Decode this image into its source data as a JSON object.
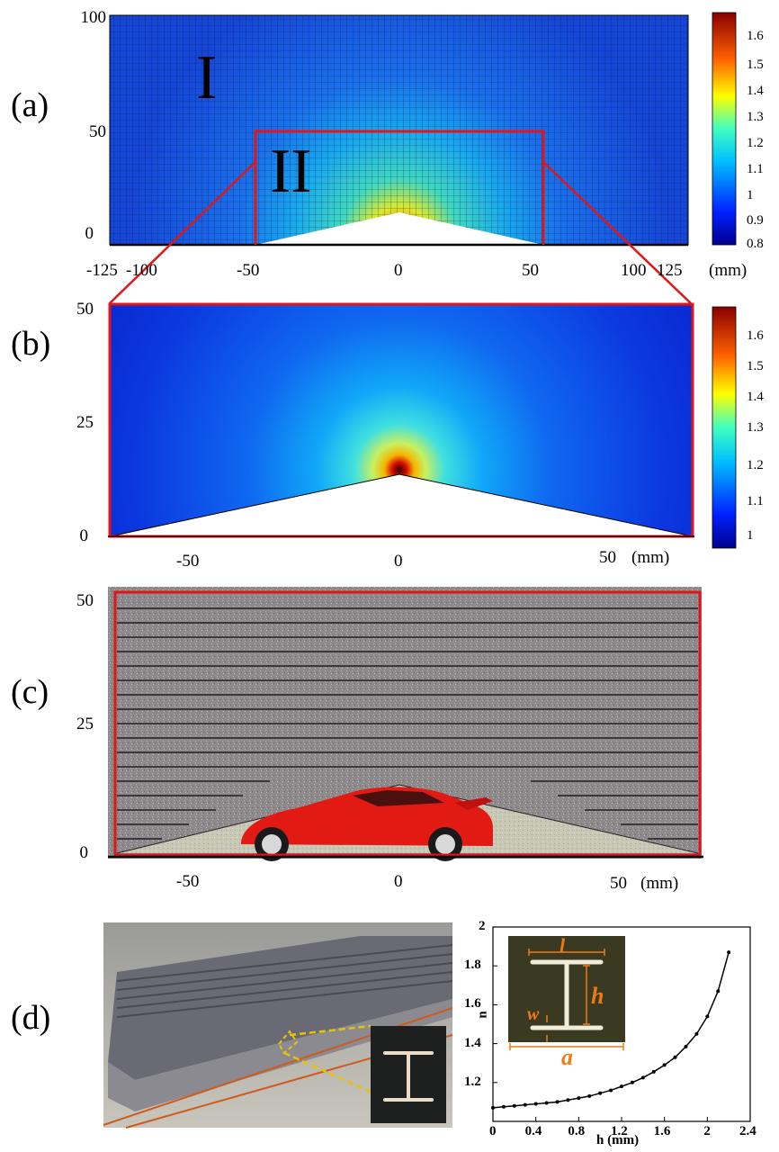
{
  "panels": {
    "a": {
      "label": "(a)",
      "region_labels": [
        "I",
        "II"
      ],
      "y_ticks": [
        "100",
        "50",
        "0"
      ],
      "x_ticks": [
        "-125",
        "-100",
        "-50",
        "0",
        "50",
        "100",
        "125"
      ],
      "x_unit": "(mm)",
      "colorbar_ticks": [
        "1.6",
        "1.5",
        "1.4",
        "1.3",
        "1.2",
        "1.1",
        "1",
        "0.9",
        "0.8"
      ]
    },
    "b": {
      "label": "(b)",
      "y_ticks": [
        "50",
        "25",
        "0"
      ],
      "x_ticks": [
        "-50",
        "0",
        "50"
      ],
      "x_unit": "(mm)",
      "colorbar_ticks": [
        "1.6",
        "1.5",
        "1.4",
        "1.3",
        "1.2",
        "1.1",
        "1"
      ]
    },
    "c": {
      "label": "(c)",
      "y_ticks": [
        "50",
        "25",
        "0"
      ],
      "x_ticks": [
        "-50",
        "0",
        "50"
      ],
      "x_unit": "(mm)"
    },
    "d": {
      "label": "(d)",
      "inset_labels": {
        "l": "l",
        "h": "h",
        "w": "w",
        "a": "a"
      }
    }
  },
  "chart_data": {
    "type": "line",
    "xlabel": "h (mm)",
    "ylabel": "n",
    "xlim": [
      0,
      2.4
    ],
    "ylim": [
      1.0,
      2.0
    ],
    "x_ticks": [
      "0",
      "0.4",
      "0.8",
      "1.2",
      "1.6",
      "2",
      "2.4"
    ],
    "y_ticks": [
      "1.2",
      "1.4",
      "1.6",
      "1.8",
      "2"
    ],
    "x": [
      0,
      0.1,
      0.2,
      0.3,
      0.4,
      0.5,
      0.6,
      0.7,
      0.8,
      0.9,
      1.0,
      1.1,
      1.2,
      1.3,
      1.4,
      1.5,
      1.6,
      1.7,
      1.8,
      1.9,
      2.0,
      2.1,
      2.2
    ],
    "y": [
      1.07,
      1.075,
      1.08,
      1.085,
      1.09,
      1.095,
      1.1,
      1.11,
      1.12,
      1.13,
      1.145,
      1.16,
      1.18,
      1.2,
      1.225,
      1.255,
      1.29,
      1.33,
      1.385,
      1.45,
      1.54,
      1.67,
      1.87
    ],
    "grid": false
  },
  "colors": {
    "frame_red": "#e0161b",
    "orange": "#f07a12",
    "yellow": "#e8c400"
  }
}
